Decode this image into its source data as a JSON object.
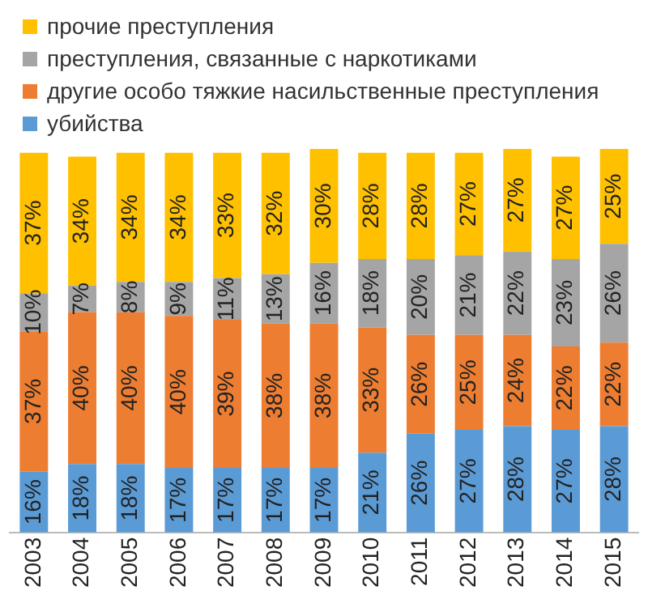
{
  "chart_data": {
    "type": "bar",
    "stacked": true,
    "tick_labels": "x",
    "legend": "top left",
    "grid": false,
    "categories": [
      "2003",
      "2004",
      "2005",
      "2006",
      "2007",
      "2008",
      "2009",
      "2010",
      "2011",
      "2012",
      "2013",
      "2014",
      "2015"
    ],
    "series": [
      {
        "name": "убийства",
        "color": "#5b9bd5",
        "values": [
          16,
          18,
          18,
          17,
          17,
          17,
          17,
          21,
          26,
          27,
          28,
          27,
          28
        ],
        "value_labels": [
          "16%",
          "18%",
          "18%",
          "17%",
          "17%",
          "17%",
          "17%",
          "21%",
          "26%",
          "27%",
          "28%",
          "27%",
          "28%"
        ]
      },
      {
        "name": "другие особо тяжкие насильственные преступления",
        "color": "#ed7d31",
        "values": [
          37,
          40,
          40,
          40,
          39,
          38,
          38,
          33,
          26,
          25,
          24,
          22,
          22
        ],
        "value_labels": [
          "37%",
          "40%",
          "40%",
          "40%",
          "39%",
          "38%",
          "38%",
          "33%",
          "26%",
          "25%",
          "24%",
          "22%",
          "22%"
        ]
      },
      {
        "name": "преступления, связанные с наркотиками",
        "color": "#a5a5a5",
        "values": [
          10,
          7,
          8,
          9,
          11,
          13,
          16,
          18,
          20,
          21,
          22,
          23,
          26
        ],
        "value_labels": [
          "10%",
          "7%",
          "8%",
          "9%",
          "11%",
          "13%",
          "16%",
          "18%",
          "20%",
          "21%",
          "22%",
          "23%",
          "26%"
        ]
      },
      {
        "name": "прочие преступления",
        "color": "#ffc000",
        "values": [
          37,
          34,
          34,
          34,
          33,
          32,
          30,
          28,
          28,
          27,
          27,
          27,
          25
        ],
        "value_labels": [
          "37%",
          "34%",
          "34%",
          "34%",
          "33%",
          "32%",
          "30%",
          "28%",
          "28%",
          "27%",
          "27%",
          "27%",
          "25%"
        ]
      }
    ]
  }
}
